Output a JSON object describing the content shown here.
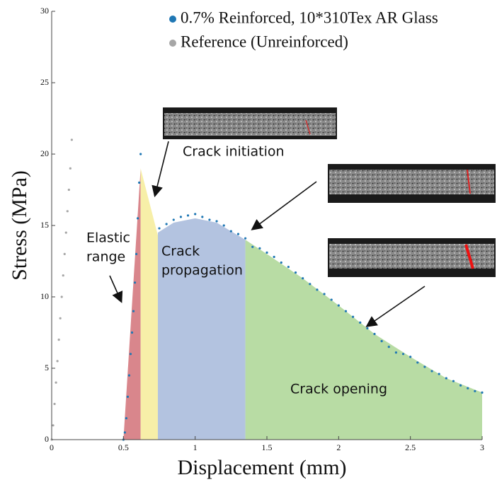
{
  "chart_data": {
    "type": "scatter",
    "x_label": "Displacement (mm)",
    "y_label": "Stress (MPa)",
    "xlim": [
      0,
      3
    ],
    "ylim": [
      0,
      30
    ],
    "xticks": [
      0,
      0.5,
      1,
      1.5,
      2,
      2.5,
      3
    ],
    "yticks": [
      0,
      5,
      10,
      15,
      20,
      25,
      30
    ],
    "legend": "top-right",
    "series": [
      {
        "name": "0.7% Reinforced, 10*310Tex AR Glass",
        "color": "#1f77b4",
        "x": [
          0.5,
          0.51,
          0.52,
          0.53,
          0.54,
          0.55,
          0.56,
          0.57,
          0.58,
          0.59,
          0.6,
          0.61,
          0.62,
          0.75,
          0.8,
          0.85,
          0.9,
          0.95,
          1.0,
          1.05,
          1.1,
          1.15,
          1.2,
          1.25,
          1.3,
          1.35,
          1.4,
          1.45,
          1.5,
          1.55,
          1.6,
          1.65,
          1.7,
          1.75,
          1.8,
          1.85,
          1.9,
          1.95,
          2.0,
          2.05,
          2.1,
          2.15,
          2.2,
          2.25,
          2.3,
          2.35,
          2.4,
          2.45,
          2.5,
          2.55,
          2.6,
          2.65,
          2.7,
          2.75,
          2.8,
          2.85,
          2.9,
          2.95,
          3.0
        ],
        "values": [
          0,
          0.5,
          1.5,
          3,
          4.5,
          6,
          7.5,
          9,
          11,
          13,
          15.5,
          18,
          20,
          14.8,
          15.1,
          15.4,
          15.6,
          15.7,
          15.8,
          15.6,
          15.4,
          15.3,
          15.0,
          14.6,
          14.4,
          14.1,
          13.5,
          13.4,
          13.1,
          12.8,
          12.4,
          12.1,
          11.7,
          11.3,
          10.9,
          10.5,
          10.2,
          9.8,
          9.4,
          9.0,
          8.6,
          8.2,
          7.8,
          7.4,
          6.9,
          6.5,
          6.1,
          6.0,
          5.8,
          5.4,
          5.1,
          4.8,
          4.6,
          4.3,
          4.1,
          3.8,
          3.6,
          3.4,
          3.3
        ]
      },
      {
        "name": "Reference (Unreinforced)",
        "color": "#a6a6a6",
        "x": [
          0,
          0.01,
          0.02,
          0.03,
          0.04,
          0.05,
          0.06,
          0.07,
          0.08,
          0.09,
          0.1,
          0.11,
          0.12,
          0.13,
          0.14
        ],
        "values": [
          0,
          1,
          2.5,
          4,
          5.5,
          7,
          8.5,
          10,
          11.5,
          13,
          14.5,
          16,
          17.5,
          19,
          21
        ]
      }
    ],
    "regions": [
      {
        "label_lines": [
          "Elastic",
          "range"
        ],
        "color": "#d9868c",
        "x": [
          0.5,
          0.62
        ],
        "y": [
          0,
          19
        ]
      },
      {
        "label_lines": [
          "Crack initiation"
        ],
        "color": "#f7efa8",
        "x": [
          0.62,
          0.74
        ],
        "y": [
          19,
          14.3
        ]
      },
      {
        "label_lines": [
          "Crack",
          "propagation"
        ],
        "color": "#b3c3e0",
        "x": [
          0.74,
          0.85,
          1.0,
          1.15,
          1.25,
          1.35
        ],
        "y": [
          14.5,
          15.2,
          15.5,
          15.2,
          14.6,
          14
        ]
      },
      {
        "label_lines": [
          "Crack opening"
        ],
        "color": "#b8dca4",
        "x": [
          1.35,
          1.5,
          1.75,
          2,
          2.25,
          2.5,
          2.75,
          3
        ],
        "y": [
          14,
          13,
          11.3,
          9.4,
          7.4,
          5.8,
          4.3,
          3.3
        ]
      }
    ]
  }
}
